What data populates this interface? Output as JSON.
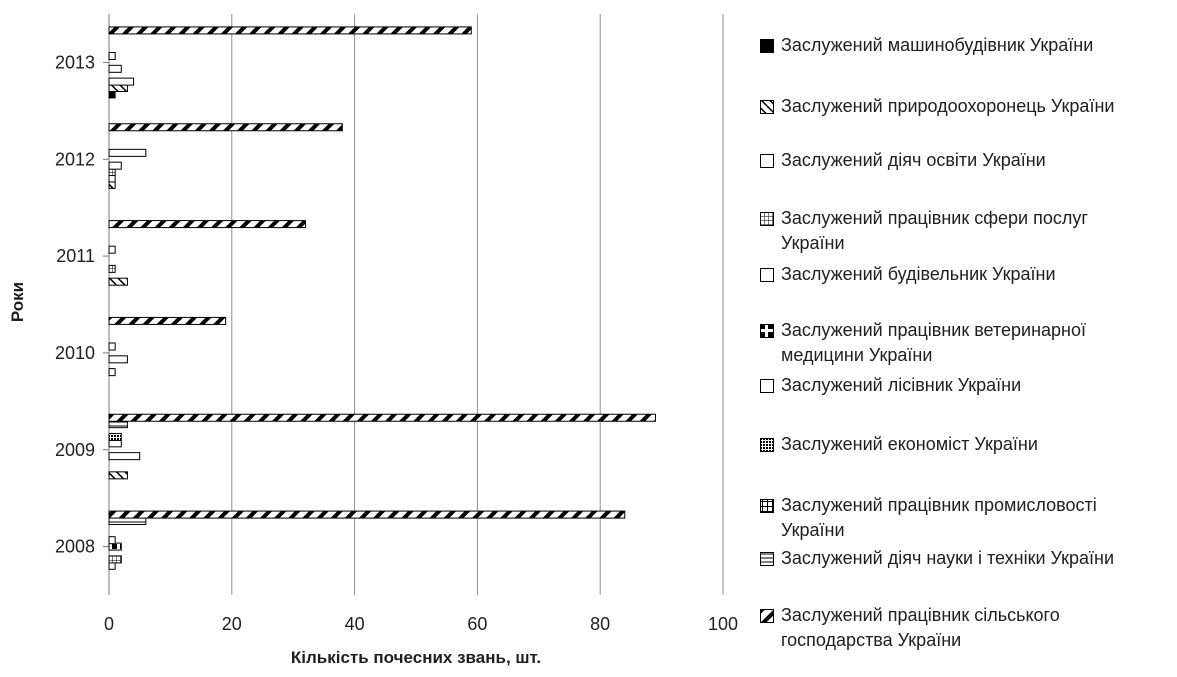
{
  "chart_data": {
    "type": "bar",
    "orientation": "horizontal",
    "title": "",
    "xlabel": "Кількість почесних звань, шт.",
    "ylabel": "Роки",
    "xlim": [
      0,
      100
    ],
    "xticks": [
      "0",
      "20",
      "40",
      "60",
      "80",
      "100"
    ],
    "grid": true,
    "legend_position": "right",
    "categories": [
      "2008",
      "2009",
      "2010",
      "2011",
      "2012",
      "2013"
    ],
    "series": [
      {
        "name": "Заслужений машинобудівник України",
        "pattern": "solid-black",
        "values": [
          0,
          0,
          0,
          0,
          0,
          1
        ]
      },
      {
        "name": "Заслужений природоохоронець України",
        "pattern": "diagonal-up",
        "values": [
          0,
          3,
          0,
          3,
          1,
          3
        ]
      },
      {
        "name": "Заслужений діяч освіти України",
        "pattern": "white",
        "values": [
          1,
          0,
          1,
          0,
          1,
          4
        ]
      },
      {
        "name": "Заслужений працівник сфери послуг України",
        "pattern": "grid",
        "values": [
          2,
          0,
          0,
          1,
          1,
          0
        ]
      },
      {
        "name": "Заслужений будівельник України",
        "pattern": "white",
        "values": [
          0,
          5,
          3,
          0,
          2,
          2
        ]
      },
      {
        "name": "Заслужений працівник ветеринарної медицини України",
        "pattern": "corner",
        "values": [
          2,
          0,
          0,
          0,
          0,
          0
        ]
      },
      {
        "name": "Заслужений лісівник України",
        "pattern": "white",
        "values": [
          1,
          2,
          1,
          1,
          6,
          1
        ]
      },
      {
        "name": "Заслужений економіст України",
        "pattern": "checker",
        "values": [
          0,
          2,
          0,
          0,
          0,
          0
        ]
      },
      {
        "name": "Заслужений працівник промисловості України",
        "pattern": "crosshatch",
        "values": [
          0,
          0,
          0,
          0,
          0,
          0
        ]
      },
      {
        "name": "Заслужений діяч науки і техніки України",
        "pattern": "horizontal",
        "values": [
          6,
          3,
          0,
          0,
          0,
          0
        ]
      },
      {
        "name": "Заслужений працівник сільського господарства України",
        "pattern": "diagonal-wide",
        "values": [
          84,
          89,
          19,
          32,
          38,
          59
        ]
      }
    ]
  }
}
